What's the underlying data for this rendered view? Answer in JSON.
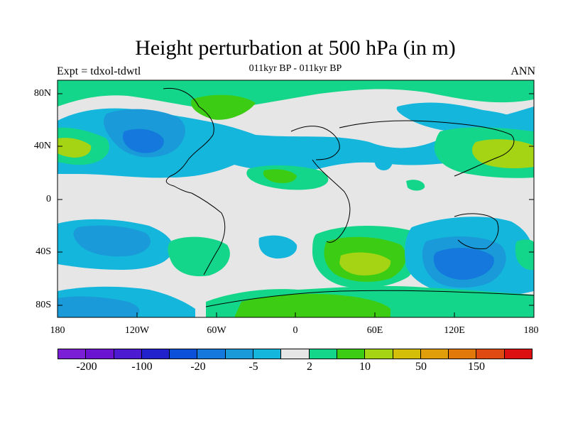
{
  "title": "Height perturbation at 500 hPa (in m)",
  "subtitle": "011kyr BP - 011kyr BP",
  "expt_label": "Expt = tdxol-tdwtl",
  "period_label": "ANN",
  "y_ticks": [
    "80N",
    "40N",
    "0",
    "40S",
    "80S"
  ],
  "x_ticks": [
    "180",
    "120W",
    "60W",
    "0",
    "60E",
    "120E",
    "180"
  ],
  "colorbar": {
    "colors": [
      "#7a1fd6",
      "#6a14d2",
      "#4c1ad0",
      "#2222cc",
      "#0a50d8",
      "#1478dc",
      "#1a9ad8",
      "#14b6dc",
      "#e6e6e6",
      "#14d68a",
      "#3ccc14",
      "#a4d414",
      "#d4be0a",
      "#e09e0a",
      "#e0780a",
      "#de4a12",
      "#dc1010"
    ],
    "labels": [
      "-200",
      "-100",
      "-20",
      "-5",
      "2",
      "10",
      "50",
      "150"
    ]
  },
  "map_colors": {
    "neutral": "#e6e6e6",
    "blue_light": "#14b6dc",
    "blue_mid": "#1a9ad8",
    "blue_dark": "#1478dc",
    "blue_deep": "#0a50d8",
    "green_light": "#14d68a",
    "green": "#3ccc14",
    "yellowgreen": "#a4d414"
  }
}
